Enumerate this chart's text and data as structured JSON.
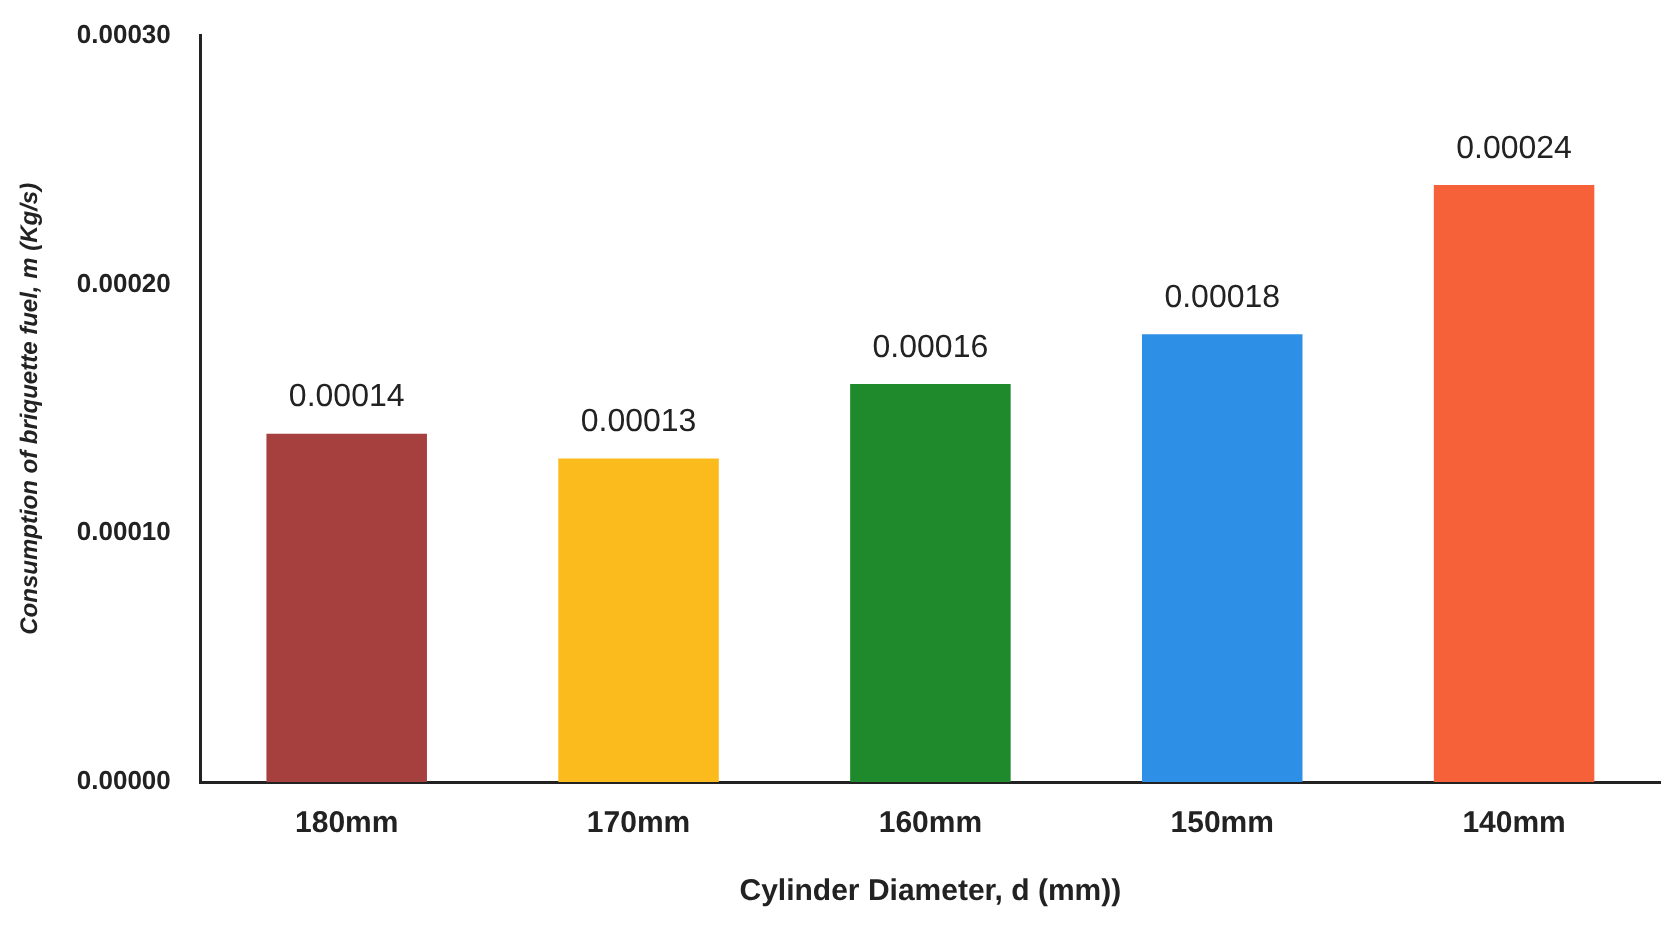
{
  "chart_data": {
    "type": "bar",
    "xlabel": "Cylinder Diameter, d (mm))",
    "ylabel": "Consumption of briquette fuel, m (Kg/s)",
    "categories": [
      "180mm",
      "170mm",
      "160mm",
      "150mm",
      "140mm"
    ],
    "values": [
      0.00014,
      0.00013,
      0.00016,
      0.00018,
      0.00024
    ],
    "colors": [
      "#a5403f",
      "#fbbb1d",
      "#1e8a2b",
      "#2e8fe6",
      "#f7613a"
    ],
    "ylim": [
      0,
      0.0003
    ],
    "yticks": [
      {
        "value": 0,
        "label": "0.00000"
      },
      {
        "value": 0.0001,
        "label": "0.00010"
      },
      {
        "value": 0.0002,
        "label": "0.00020"
      },
      {
        "value": 0.0003,
        "label": "0.00030"
      }
    ],
    "data_labels": true,
    "grid": false,
    "legend": false
  }
}
